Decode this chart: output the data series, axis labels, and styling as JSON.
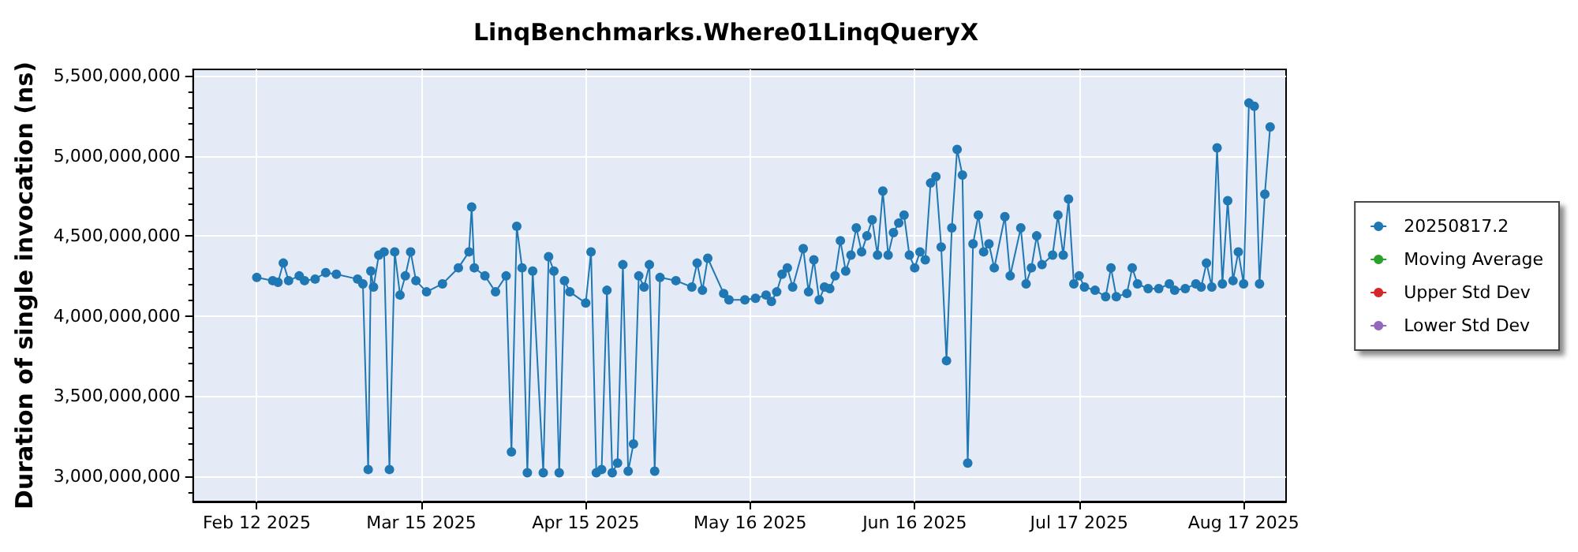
{
  "chart_data": {
    "type": "line",
    "title": "LinqBenchmarks.Where01LinqQueryX",
    "ylabel": "Duration of single invocation (ns)",
    "xlim": [
      "2025-01-31",
      "2025-08-25"
    ],
    "xticks": [
      {
        "value": "2025-02-12",
        "label": "Feb 12 2025"
      },
      {
        "value": "2025-03-15",
        "label": "Mar 15 2025"
      },
      {
        "value": "2025-04-15",
        "label": "Apr 15 2025"
      },
      {
        "value": "2025-05-16",
        "label": "May 16 2025"
      },
      {
        "value": "2025-06-16",
        "label": "Jun 16 2025"
      },
      {
        "value": "2025-07-17",
        "label": "Jul 17 2025"
      },
      {
        "value": "2025-08-17",
        "label": "Aug 17 2025"
      }
    ],
    "ylim": [
      2840000000,
      5540000000
    ],
    "yticks": [
      {
        "value": 3000000000,
        "label": "3,000,000,000"
      },
      {
        "value": 3500000000,
        "label": "3,500,000,000"
      },
      {
        "value": 4000000000,
        "label": "4,000,000,000"
      },
      {
        "value": 4500000000,
        "label": "4,500,000,000"
      },
      {
        "value": 5000000000,
        "label": "5,000,000,000"
      },
      {
        "value": 5500000000,
        "label": "5,500,000,000"
      }
    ],
    "grid": true,
    "legend": "right",
    "marker": "circle",
    "line_style": "solid",
    "series": [
      {
        "name": "20250817.2",
        "color": "#1f77b4",
        "x": [
          "2025-02-12",
          "2025-02-15",
          "2025-02-16",
          "2025-02-17",
          "2025-02-18",
          "2025-02-20",
          "2025-02-21",
          "2025-02-23",
          "2025-02-25",
          "2025-02-27",
          "2025-03-03",
          "2025-03-04",
          "2025-03-05",
          "2025-03-05T12:00",
          "2025-03-06",
          "2025-03-07",
          "2025-03-08",
          "2025-03-09",
          "2025-03-10",
          "2025-03-11",
          "2025-03-12",
          "2025-03-13",
          "2025-03-14",
          "2025-03-16",
          "2025-03-19",
          "2025-03-22",
          "2025-03-24",
          "2025-03-24T12:00",
          "2025-03-25",
          "2025-03-27",
          "2025-03-29",
          "2025-03-31",
          "2025-04-01",
          "2025-04-02",
          "2025-04-03",
          "2025-04-04",
          "2025-04-05",
          "2025-04-07",
          "2025-04-08",
          "2025-04-09",
          "2025-04-10",
          "2025-04-11",
          "2025-04-12",
          "2025-04-15",
          "2025-04-16",
          "2025-04-17",
          "2025-04-18",
          "2025-04-19",
          "2025-04-20",
          "2025-04-21",
          "2025-04-22",
          "2025-04-23",
          "2025-04-24",
          "2025-04-25",
          "2025-04-26",
          "2025-04-27",
          "2025-04-28",
          "2025-04-29",
          "2025-05-02",
          "2025-05-05",
          "2025-05-06",
          "2025-05-07",
          "2025-05-08",
          "2025-05-11",
          "2025-05-12",
          "2025-05-15",
          "2025-05-17",
          "2025-05-19",
          "2025-05-20",
          "2025-05-21",
          "2025-05-22",
          "2025-05-23",
          "2025-05-24",
          "2025-05-26",
          "2025-05-27",
          "2025-05-28",
          "2025-05-29",
          "2025-05-30",
          "2025-05-31",
          "2025-06-01",
          "2025-06-02",
          "2025-06-03",
          "2025-06-04",
          "2025-06-05",
          "2025-06-06",
          "2025-06-07",
          "2025-06-08",
          "2025-06-09",
          "2025-06-10",
          "2025-06-11",
          "2025-06-12",
          "2025-06-13",
          "2025-06-14",
          "2025-06-15",
          "2025-06-16",
          "2025-06-17",
          "2025-06-18",
          "2025-06-19",
          "2025-06-20",
          "2025-06-21",
          "2025-06-22",
          "2025-06-23",
          "2025-06-24",
          "2025-06-25",
          "2025-06-26",
          "2025-06-27",
          "2025-06-28",
          "2025-06-29",
          "2025-06-30",
          "2025-07-01",
          "2025-07-03",
          "2025-07-04",
          "2025-07-06",
          "2025-07-07",
          "2025-07-08",
          "2025-07-09",
          "2025-07-10",
          "2025-07-12",
          "2025-07-13",
          "2025-07-14",
          "2025-07-15",
          "2025-07-16",
          "2025-07-17",
          "2025-07-18",
          "2025-07-20",
          "2025-07-22",
          "2025-07-23",
          "2025-07-24",
          "2025-07-26",
          "2025-07-27",
          "2025-07-28",
          "2025-07-30",
          "2025-08-01",
          "2025-08-03",
          "2025-08-04",
          "2025-08-06",
          "2025-08-08",
          "2025-08-09",
          "2025-08-10",
          "2025-08-11",
          "2025-08-12",
          "2025-08-13",
          "2025-08-14",
          "2025-08-15",
          "2025-08-16",
          "2025-08-17",
          "2025-08-18",
          "2025-08-19",
          "2025-08-20",
          "2025-08-21",
          "2025-08-22"
        ],
        "values": [
          4240000000,
          4220000000,
          4210000000,
          4330000000,
          4220000000,
          4250000000,
          4220000000,
          4230000000,
          4270000000,
          4260000000,
          4230000000,
          4200000000,
          3040000000,
          4280000000,
          4180000000,
          4380000000,
          4400000000,
          3040000000,
          4400000000,
          4130000000,
          4250000000,
          4400000000,
          4220000000,
          4150000000,
          4200000000,
          4300000000,
          4400000000,
          4680000000,
          4300000000,
          4250000000,
          4150000000,
          4250000000,
          3150000000,
          4560000000,
          4300000000,
          3020000000,
          4280000000,
          3020000000,
          4370000000,
          4280000000,
          3020000000,
          4220000000,
          4150000000,
          4080000000,
          4400000000,
          3020000000,
          3040000000,
          4160000000,
          3020000000,
          3080000000,
          4320000000,
          3030000000,
          3200000000,
          4250000000,
          4180000000,
          4320000000,
          3030000000,
          4240000000,
          4220000000,
          4180000000,
          4330000000,
          4160000000,
          4360000000,
          4140000000,
          4100000000,
          4100000000,
          4110000000,
          4130000000,
          4090000000,
          4150000000,
          4260000000,
          4300000000,
          4180000000,
          4420000000,
          4150000000,
          4350000000,
          4100000000,
          4180000000,
          4170000000,
          4250000000,
          4470000000,
          4280000000,
          4380000000,
          4550000000,
          4400000000,
          4500000000,
          4600000000,
          4380000000,
          4780000000,
          4380000000,
          4520000000,
          4580000000,
          4630000000,
          4380000000,
          4300000000,
          4400000000,
          4350000000,
          4830000000,
          4870000000,
          4430000000,
          3720000000,
          4550000000,
          5040000000,
          4880000000,
          3080000000,
          4450000000,
          4630000000,
          4400000000,
          4450000000,
          4300000000,
          4620000000,
          4250000000,
          4550000000,
          4200000000,
          4300000000,
          4500000000,
          4320000000,
          4380000000,
          4630000000,
          4380000000,
          4730000000,
          4200000000,
          4250000000,
          4180000000,
          4160000000,
          4120000000,
          4300000000,
          4120000000,
          4140000000,
          4300000000,
          4200000000,
          4170000000,
          4170000000,
          4200000000,
          4160000000,
          4170000000,
          4200000000,
          4180000000,
          4330000000,
          4180000000,
          5050000000,
          4200000000,
          4720000000,
          4220000000,
          4400000000,
          4200000000,
          5330000000,
          5310000000,
          4200000000,
          4760000000,
          5180000000
        ]
      },
      {
        "name": "Moving Average",
        "color": "#2ca02c"
      },
      {
        "name": "Upper Std Dev",
        "color": "#d62728"
      },
      {
        "name": "Lower Std Dev",
        "color": "#9467bd"
      }
    ]
  }
}
